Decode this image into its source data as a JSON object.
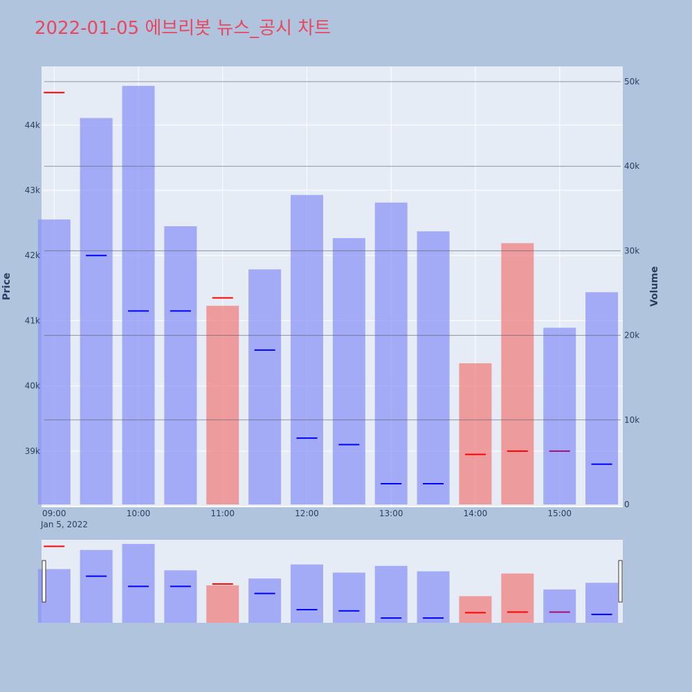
{
  "chart_data": {
    "type": "bar",
    "title": "2022-01-05 에브리봇 뉴스_공시 차트",
    "x_date_label": "Jan 5, 2022",
    "x_tick_labels": [
      "09:00",
      "10:00",
      "11:00",
      "12:00",
      "13:00",
      "14:00",
      "15:00"
    ],
    "x_tick_hours": [
      9,
      10,
      11,
      12,
      13,
      14,
      15
    ],
    "xlim_hours": [
      8.85,
      15.75
    ],
    "categories": [
      "09:00",
      "09:30",
      "10:00",
      "10:30",
      "11:00",
      "11:30",
      "12:00",
      "12:30",
      "13:00",
      "13:30",
      "14:00",
      "14:30",
      "15:00",
      "15:30"
    ],
    "category_hours": [
      9.0,
      9.5,
      10.0,
      10.5,
      11.0,
      11.5,
      12.0,
      12.5,
      13.0,
      13.5,
      14.0,
      14.5,
      15.0,
      15.5
    ],
    "volume": {
      "axis_title": "Volume",
      "ylim": [
        0,
        51800
      ],
      "tick_values": [
        0,
        10000,
        20000,
        30000,
        40000,
        50000
      ],
      "tick_labels": [
        "0",
        "10k",
        "20k",
        "30k",
        "40k",
        "50k"
      ],
      "values": [
        33700,
        45700,
        49500,
        32900,
        23500,
        27800,
        36600,
        31500,
        35700,
        32300,
        16700,
        30900,
        20900,
        25100
      ],
      "direction": [
        "down",
        "down",
        "down",
        "down",
        "up",
        "down",
        "down",
        "down",
        "down",
        "down",
        "up",
        "up",
        "down",
        "down"
      ]
    },
    "price": {
      "axis_title": "Price",
      "ylim": [
        38150,
        44900
      ],
      "tick_values": [
        39000,
        40000,
        41000,
        42000,
        43000,
        44000
      ],
      "tick_labels": [
        "39k",
        "40k",
        "41k",
        "42k",
        "43k",
        "44k"
      ],
      "values": [
        44500,
        42000,
        41150,
        41150,
        41350,
        40550,
        39200,
        39100,
        38500,
        38500,
        38950,
        39000,
        39000,
        38800
      ],
      "marker_color": [
        "red",
        "blue",
        "blue",
        "blue",
        "red",
        "blue",
        "blue",
        "blue",
        "blue",
        "blue",
        "red",
        "red",
        "purple",
        "blue"
      ]
    },
    "colors": {
      "up_bar": "#f08080",
      "down_bar": "#8c96f5",
      "red_marker": "#ff0000",
      "blue_marker": "#0000ff",
      "purple_marker": "#a0106f",
      "plot_bg": "#e5ecf6",
      "page_bg": "#b0c4de",
      "title": "#e8475f"
    },
    "grid": true,
    "rangeslider": true,
    "legend": "none"
  }
}
